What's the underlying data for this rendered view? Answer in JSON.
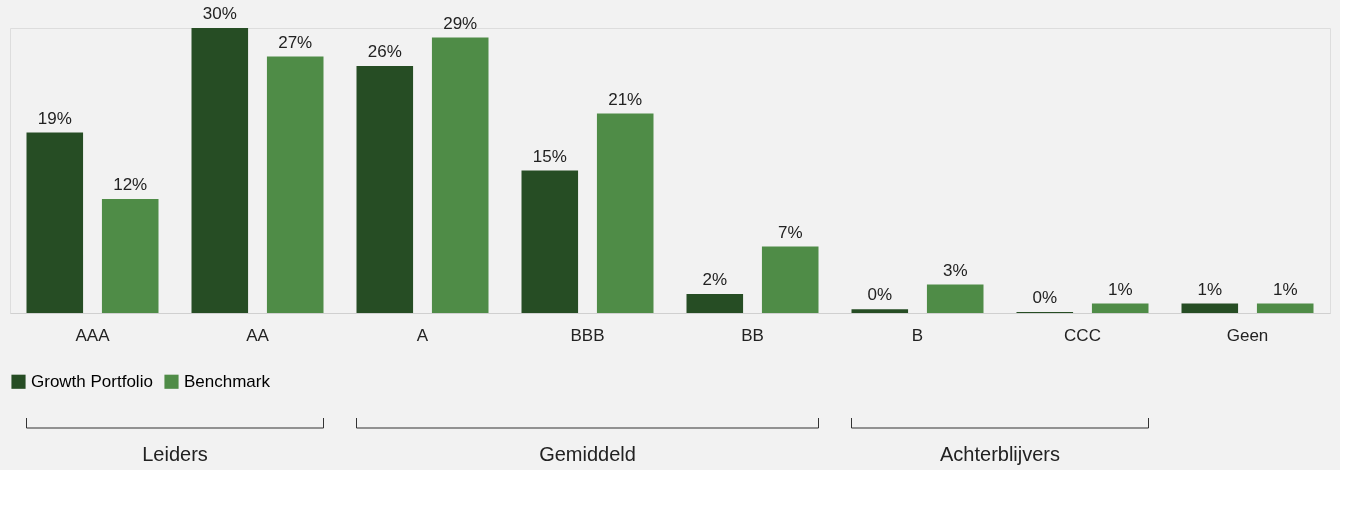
{
  "chart_data": {
    "type": "bar",
    "categories": [
      "AAA",
      "AA",
      "A",
      "BBB",
      "BB",
      "B",
      "CCC",
      "Geen"
    ],
    "series": [
      {
        "name": "Growth Portfolio",
        "color": "#264d24",
        "values": [
          19,
          30,
          26,
          15,
          2,
          0.4,
          0.1,
          1
        ],
        "value_labels": [
          "19%",
          "30%",
          "26%",
          "15%",
          "2%",
          "0%",
          "0%",
          "1%"
        ]
      },
      {
        "name": "Benchmark",
        "color": "#4f8c47",
        "values": [
          12,
          27,
          29,
          21,
          7,
          3,
          1,
          1
        ],
        "value_labels": [
          "12%",
          "27%",
          "29%",
          "21%",
          "7%",
          "3%",
          "1%",
          "1%"
        ]
      }
    ],
    "annotations": [
      "Leiders",
      "Gemiddeld",
      "Achterblijvers"
    ],
    "legend": "bottom",
    "grid": false,
    "tick_labels": "x"
  }
}
